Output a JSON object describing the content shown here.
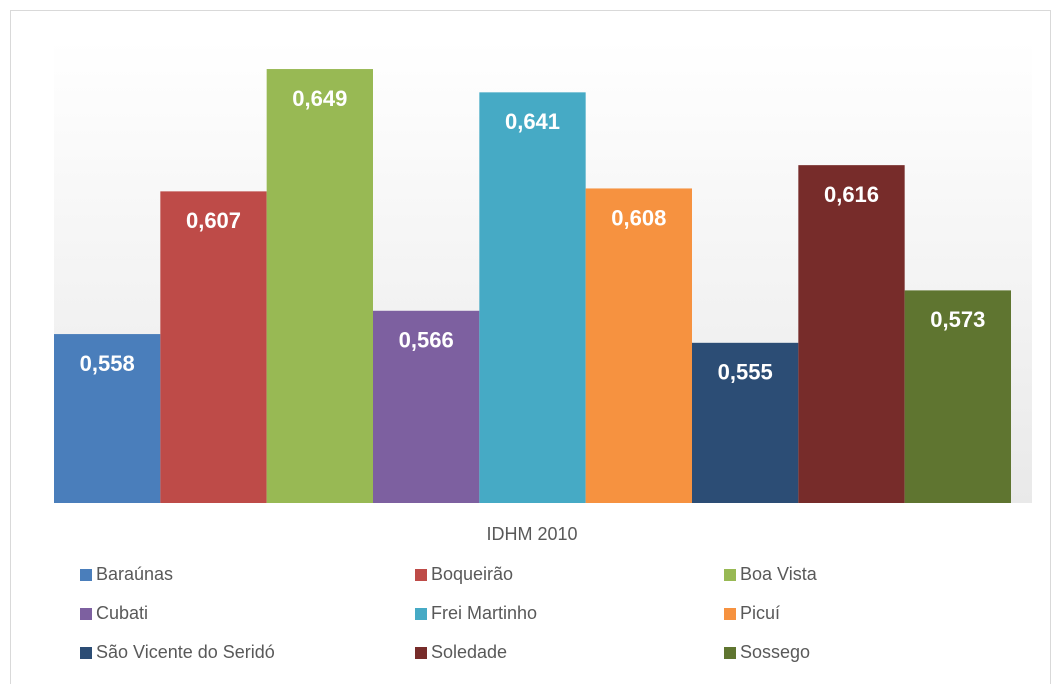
{
  "chart_data": {
    "type": "bar",
    "categories": [
      "IDHM 2010"
    ],
    "series": [
      {
        "name": "Baraúnas",
        "color": "#4a7ebb",
        "values": [
          0.558
        ],
        "value_labels": [
          "0,558"
        ]
      },
      {
        "name": "Boqueirão",
        "color": "#be4b48",
        "values": [
          0.607
        ],
        "value_labels": [
          "0,607"
        ]
      },
      {
        "name": "Boa Vista",
        "color": "#98b954",
        "values": [
          0.649
        ],
        "value_labels": [
          "0,649"
        ]
      },
      {
        "name": "Cubati",
        "color": "#7d60a0",
        "values": [
          0.566
        ],
        "value_labels": [
          "0,566"
        ]
      },
      {
        "name": "Frei Martinho",
        "color": "#46aac5",
        "values": [
          0.641
        ],
        "value_labels": [
          "0,641"
        ]
      },
      {
        "name": "Picuí",
        "color": "#f69240",
        "values": [
          0.608
        ],
        "value_labels": [
          "0,608"
        ]
      },
      {
        "name": "São Vicente do Seridó",
        "color": "#2c4d75",
        "values": [
          0.555
        ],
        "value_labels": [
          "0,555"
        ]
      },
      {
        "name": "Soledade",
        "color": "#772c2a",
        "values": [
          0.616
        ],
        "value_labels": [
          "0,616"
        ]
      },
      {
        "name": "Sossego",
        "color": "#5f7530",
        "values": [
          0.573
        ],
        "value_labels": [
          "0,573"
        ]
      }
    ],
    "ylim": [
      0.5,
      0.66
    ],
    "legend": "bottom"
  }
}
